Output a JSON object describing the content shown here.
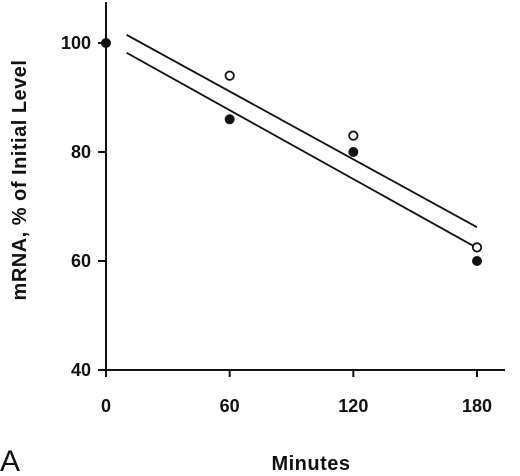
{
  "chart_data": {
    "type": "scatter",
    "panel_label": "A",
    "xlabel": "Minutes",
    "ylabel": "mRNA, % of Initial Level",
    "xlim": [
      0,
      190
    ],
    "ylim": [
      40,
      108
    ],
    "x_ticks": [
      0,
      60,
      120,
      180
    ],
    "y_ticks": [
      40,
      60,
      80,
      100
    ],
    "series": [
      {
        "marker": "filled-circle",
        "points": [
          {
            "x": 0,
            "y": 100
          },
          {
            "x": 60,
            "y": 86
          },
          {
            "x": 120,
            "y": 80
          },
          {
            "x": 180,
            "y": 60
          }
        ],
        "fit_line": {
          "x": [
            10,
            180
          ],
          "y": [
            98.2,
            62.4
          ]
        }
      },
      {
        "marker": "open-circle",
        "points": [
          {
            "x": 60,
            "y": 94
          },
          {
            "x": 120,
            "y": 83
          },
          {
            "x": 180,
            "y": 62.5
          }
        ],
        "fit_line": {
          "x": [
            10,
            180
          ],
          "y": [
            101.5,
            66.2
          ]
        }
      }
    ],
    "grid": false,
    "colors": {
      "ink": "#111111",
      "background": "#ffffff"
    }
  }
}
